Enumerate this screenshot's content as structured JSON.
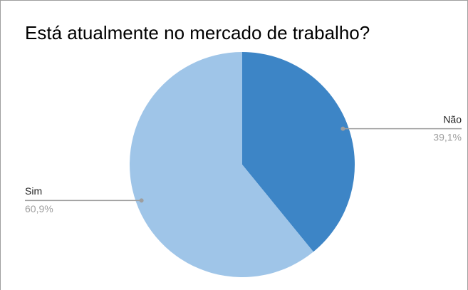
{
  "chart_data": {
    "type": "pie",
    "title": "Está atualmente no mercado de trabalho?",
    "categories": [
      "Não",
      "Sim"
    ],
    "values": [
      39.1,
      60.9
    ],
    "value_labels": [
      "39,1%",
      "60,9%"
    ],
    "colors": [
      "#3d85c6",
      "#9fc5e8"
    ]
  }
}
